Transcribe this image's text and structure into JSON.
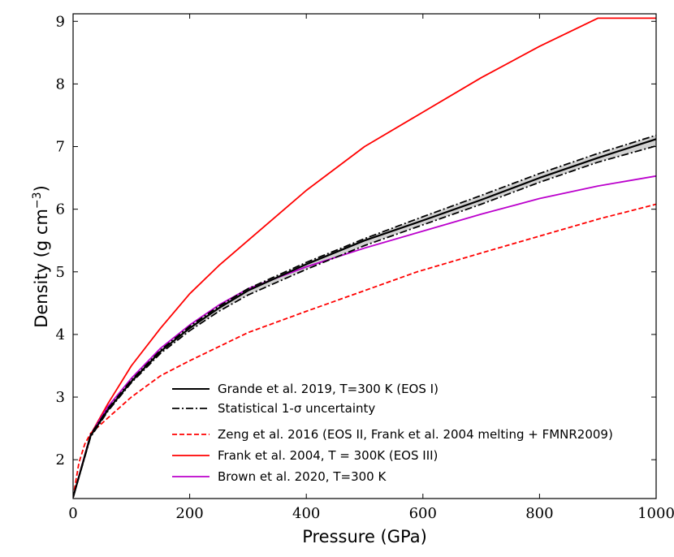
{
  "chart_data": {
    "type": "line",
    "title": "",
    "xlabel": "Pressure (GPa)",
    "ylabel_main": "Density (g cm",
    "ylabel_sup": "−3",
    "ylabel_close": ")",
    "xlim": [
      0,
      1000
    ],
    "ylim": [
      1.38,
      9.12
    ],
    "xticks": [
      0,
      200,
      400,
      600,
      800,
      1000
    ],
    "xtick_labels": [
      "0",
      "200",
      "400",
      "600",
      "800",
      "1000"
    ],
    "yticks": [
      2,
      3,
      4,
      5,
      6,
      7,
      8,
      9
    ],
    "ytick_labels": [
      "2",
      "3",
      "4",
      "5",
      "6",
      "7",
      "8",
      "9"
    ],
    "grid": false,
    "legend_position": "bottom-right",
    "series": [
      {
        "name": "Grande et al. 2019, T=300 K (EOS I)",
        "color": "#000000",
        "style": "solid",
        "x": [
          0,
          30,
          60,
          100,
          150,
          200,
          250,
          300,
          400,
          500,
          600,
          700,
          800,
          900,
          1000
        ],
        "y": [
          1.4,
          2.38,
          2.8,
          3.25,
          3.73,
          4.1,
          4.42,
          4.7,
          5.12,
          5.5,
          5.82,
          6.15,
          6.5,
          6.82,
          7.12
        ]
      },
      {
        "name": "Statistical 1-σ uncertainty",
        "color": "#000000",
        "style": "dashdot",
        "band_color": "#d3d3d3",
        "upper": {
          "x": [
            0,
            30,
            60,
            100,
            150,
            200,
            250,
            300,
            400,
            500,
            600,
            700,
            800,
            900,
            1000
          ],
          "y": [
            1.4,
            2.4,
            2.82,
            3.27,
            3.75,
            4.13,
            4.45,
            4.73,
            5.15,
            5.53,
            5.88,
            6.22,
            6.57,
            6.89,
            7.18
          ]
        },
        "lower": {
          "x": [
            0,
            30,
            60,
            100,
            150,
            200,
            250,
            300,
            400,
            500,
            600,
            700,
            800,
            900,
            1000
          ],
          "y": [
            1.4,
            2.36,
            2.78,
            3.23,
            3.7,
            4.06,
            4.37,
            4.63,
            5.04,
            5.42,
            5.75,
            6.08,
            6.43,
            6.75,
            7.01
          ]
        }
      },
      {
        "name": "Zeng et al. 2016 (EOS II, Frank et al. 2004 melting + FMNR2009)",
        "color": "#ff0000",
        "style": "dashed",
        "x": [
          0,
          10,
          20,
          30,
          40,
          60,
          100,
          150,
          200,
          300,
          400,
          500,
          590,
          700,
          800,
          900,
          1000
        ],
        "y": [
          1.4,
          1.95,
          2.25,
          2.42,
          2.5,
          2.67,
          3.0,
          3.34,
          3.58,
          4.03,
          4.37,
          4.7,
          5.0,
          5.3,
          5.57,
          5.84,
          6.08
        ]
      },
      {
        "name": "Frank et al. 2004, T = 300K (EOS III)",
        "color": "#ff0000",
        "style": "solid",
        "x": [
          0,
          30,
          60,
          100,
          150,
          200,
          250,
          300,
          400,
          500,
          600,
          700,
          800,
          900,
          1000
        ],
        "y": [
          1.4,
          2.4,
          2.9,
          3.5,
          4.1,
          4.65,
          5.1,
          5.5,
          6.3,
          7.0,
          7.55,
          8.1,
          8.6,
          9.05,
          9.05
        ]
      },
      {
        "name": "Brown et al. 2020, T=300 K",
        "color": "#bb00cc",
        "style": "solid",
        "x": [
          0,
          30,
          60,
          100,
          150,
          200,
          250,
          300,
          400,
          500,
          600,
          700,
          800,
          900,
          1000
        ],
        "y": [
          1.4,
          2.4,
          2.85,
          3.3,
          3.78,
          4.15,
          4.47,
          4.73,
          5.08,
          5.38,
          5.65,
          5.92,
          6.17,
          6.37,
          6.53
        ]
      }
    ]
  }
}
